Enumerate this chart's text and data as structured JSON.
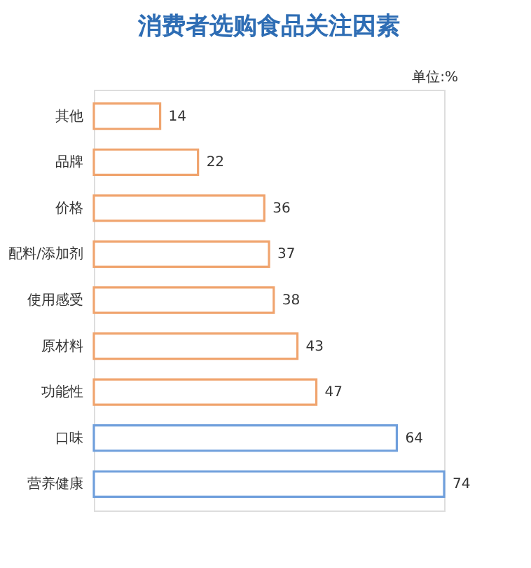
{
  "chart_data": {
    "type": "bar",
    "orientation": "horizontal",
    "title": "消费者选购食品关注因素",
    "categories": [
      "其他",
      "品牌",
      "价格",
      "配料/添加剂",
      "使用感受",
      "原材料",
      "功能性",
      "口味",
      "营养健康"
    ],
    "values": [
      14,
      22,
      36,
      37,
      38,
      43,
      47,
      64,
      74
    ],
    "colors": [
      "#f0a46e",
      "#f0a46e",
      "#f0a46e",
      "#f0a46e",
      "#f0a46e",
      "#f0a46e",
      "#f0a46e",
      "#6f9fdc",
      "#6f9fdc"
    ],
    "data_labels": true,
    "annotations": [
      "单位:%"
    ]
  }
}
